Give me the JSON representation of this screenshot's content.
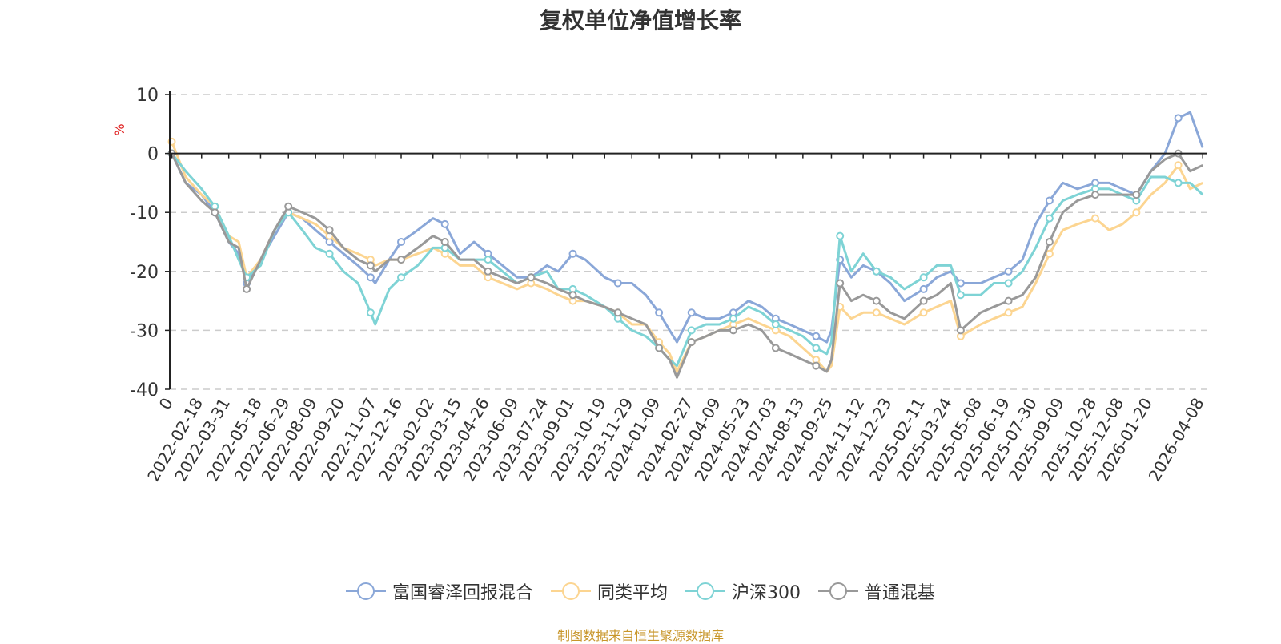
{
  "colors": {
    "series": [
      "#8aa7d8",
      "#fcd591",
      "#7ed3d5",
      "#999999"
    ],
    "grid": "#cccccc",
    "axis": "#222222",
    "unit": "#e02020",
    "footer": "#c8962a",
    "title": "#333333"
  },
  "chart_data": {
    "type": "line",
    "title": "复权单位净值增长率",
    "ylabel": "%",
    "xlabel": "",
    "ylim": [
      -40,
      10
    ],
    "yticks": [
      10,
      0,
      -10,
      -20,
      -30,
      -40
    ],
    "grid": true,
    "legend_position": "bottom-center",
    "x_domain": [
      "2022-01-01",
      "2026-04-15"
    ],
    "xtick_labels": [
      "0",
      "2022-02-18",
      "2022-03-31",
      "2022-05-18",
      "2022-06-29",
      "2022-08-09",
      "2022-09-20",
      "2022-11-07",
      "2022-12-16",
      "2023-02-02",
      "2023-03-15",
      "2023-04-26",
      "2023-06-09",
      "2023-07-24",
      "2023-09-01",
      "2023-10-19",
      "2023-11-29",
      "2024-01-09",
      "2024-02-27",
      "2024-04-09",
      "2024-05-23",
      "2024-07-03",
      "2024-08-13",
      "2024-09-25",
      "2024-11-12",
      "2024-12-23",
      "2025-02-11",
      "2025-03-24",
      "2025-05-08",
      "2025-06-19",
      "2025-07-30",
      "2025-09-09",
      "2025-10-28",
      "2025-12-08",
      "2026-01-20",
      "2026-04-08"
    ],
    "xtick_dates": [
      "2022-01-04",
      "2022-02-18",
      "2022-03-31",
      "2022-05-18",
      "2022-06-29",
      "2022-08-09",
      "2022-09-20",
      "2022-11-07",
      "2022-12-16",
      "2023-02-02",
      "2023-03-15",
      "2023-04-26",
      "2023-06-09",
      "2023-07-24",
      "2023-09-01",
      "2023-10-19",
      "2023-11-29",
      "2024-01-09",
      "2024-02-27",
      "2024-04-09",
      "2024-05-23",
      "2024-07-03",
      "2024-08-13",
      "2024-09-25",
      "2024-11-12",
      "2024-12-23",
      "2025-02-11",
      "2025-03-24",
      "2025-05-08",
      "2025-06-19",
      "2025-07-30",
      "2025-09-09",
      "2025-10-28",
      "2025-12-08",
      "2026-01-20",
      "2026-04-08"
    ],
    "series": [
      {
        "name": "富国睿泽回报混合",
        "x": [
          "2022-01-04",
          "2022-01-25",
          "2022-02-18",
          "2022-03-10",
          "2022-03-31",
          "2022-04-15",
          "2022-04-27",
          "2022-05-18",
          "2022-06-08",
          "2022-06-29",
          "2022-07-20",
          "2022-08-09",
          "2022-08-30",
          "2022-09-20",
          "2022-10-12",
          "2022-10-31",
          "2022-11-07",
          "2022-11-28",
          "2022-12-16",
          "2023-01-10",
          "2023-02-02",
          "2023-02-20",
          "2023-03-15",
          "2023-04-05",
          "2023-04-26",
          "2023-05-18",
          "2023-06-09",
          "2023-06-30",
          "2023-07-24",
          "2023-08-10",
          "2023-09-01",
          "2023-09-20",
          "2023-10-19",
          "2023-11-08",
          "2023-11-29",
          "2023-12-20",
          "2024-01-09",
          "2024-01-25",
          "2024-02-05",
          "2024-02-27",
          "2024-03-20",
          "2024-04-09",
          "2024-04-30",
          "2024-05-23",
          "2024-06-12",
          "2024-07-03",
          "2024-07-24",
          "2024-08-13",
          "2024-09-02",
          "2024-09-18",
          "2024-09-25",
          "2024-10-08",
          "2024-10-25",
          "2024-11-12",
          "2024-12-02",
          "2024-12-23",
          "2025-01-13",
          "2025-02-11",
          "2025-03-03",
          "2025-03-24",
          "2025-04-08",
          "2025-05-08",
          "2025-05-28",
          "2025-06-19",
          "2025-07-10",
          "2025-07-30",
          "2025-08-20",
          "2025-09-09",
          "2025-10-01",
          "2025-10-28",
          "2025-11-18",
          "2025-12-08",
          "2025-12-29",
          "2026-01-20",
          "2026-02-10",
          "2026-03-02",
          "2026-03-20",
          "2026-04-08"
        ],
        "values": [
          0,
          -5,
          -7,
          -10,
          -15,
          -17,
          -22,
          -18,
          -14,
          -10,
          -11,
          -13,
          -15,
          -17,
          -19,
          -21,
          -22,
          -18,
          -15,
          -13,
          -11,
          -12,
          -17,
          -15,
          -17,
          -19,
          -21,
          -21,
          -19,
          -20,
          -17,
          -18,
          -21,
          -22,
          -22,
          -24,
          -27,
          -30,
          -32,
          -27,
          -28,
          -28,
          -27,
          -25,
          -26,
          -28,
          -29,
          -30,
          -31,
          -32,
          -30,
          -18,
          -21,
          -19,
          -20,
          -22,
          -25,
          -23,
          -21,
          -20,
          -22,
          -22,
          -21,
          -20,
          -18,
          -12,
          -8,
          -5,
          -6,
          -5,
          -5,
          -6,
          -7,
          -3,
          0,
          6,
          7,
          1
        ]
      },
      {
        "name": "同类平均",
        "x": [
          "2022-01-04",
          "2022-01-25",
          "2022-02-18",
          "2022-03-10",
          "2022-03-31",
          "2022-04-15",
          "2022-04-27",
          "2022-05-18",
          "2022-06-08",
          "2022-06-29",
          "2022-07-20",
          "2022-08-09",
          "2022-08-30",
          "2022-09-20",
          "2022-10-12",
          "2022-10-31",
          "2022-11-07",
          "2022-11-28",
          "2022-12-16",
          "2023-01-10",
          "2023-02-02",
          "2023-02-20",
          "2023-03-15",
          "2023-04-05",
          "2023-04-26",
          "2023-05-18",
          "2023-06-09",
          "2023-06-30",
          "2023-07-24",
          "2023-08-10",
          "2023-09-01",
          "2023-09-20",
          "2023-10-19",
          "2023-11-08",
          "2023-11-29",
          "2023-12-20",
          "2024-01-09",
          "2024-01-25",
          "2024-02-05",
          "2024-02-27",
          "2024-03-20",
          "2024-04-09",
          "2024-04-30",
          "2024-05-23",
          "2024-06-12",
          "2024-07-03",
          "2024-07-24",
          "2024-08-13",
          "2024-09-02",
          "2024-09-18",
          "2024-09-25",
          "2024-10-08",
          "2024-10-25",
          "2024-11-12",
          "2024-12-02",
          "2024-12-23",
          "2025-01-13",
          "2025-02-11",
          "2025-03-03",
          "2025-03-24",
          "2025-04-08",
          "2025-05-08",
          "2025-05-28",
          "2025-06-19",
          "2025-07-10",
          "2025-07-30",
          "2025-08-20",
          "2025-09-09",
          "2025-10-01",
          "2025-10-28",
          "2025-11-18",
          "2025-12-08",
          "2025-12-29",
          "2026-01-20",
          "2026-02-10",
          "2026-03-02",
          "2026-03-20",
          "2026-04-08"
        ],
        "values": [
          2,
          -4,
          -7,
          -9,
          -14,
          -15,
          -21,
          -18,
          -13,
          -10,
          -11,
          -12,
          -14,
          -16,
          -17,
          -18,
          -19,
          -18,
          -18,
          -17,
          -16,
          -17,
          -19,
          -19,
          -21,
          -22,
          -23,
          -22,
          -23,
          -24,
          -25,
          -25,
          -26,
          -27,
          -29,
          -29,
          -32,
          -34,
          -37,
          -32,
          -31,
          -30,
          -29,
          -28,
          -29,
          -30,
          -31,
          -33,
          -35,
          -37,
          -36,
          -26,
          -28,
          -27,
          -27,
          -28,
          -29,
          -27,
          -26,
          -25,
          -31,
          -29,
          -28,
          -27,
          -26,
          -22,
          -17,
          -13,
          -12,
          -11,
          -13,
          -12,
          -10,
          -7,
          -5,
          -2,
          -6,
          -5
        ]
      },
      {
        "name": "沪深300",
        "x": [
          "2022-01-04",
          "2022-01-25",
          "2022-02-18",
          "2022-03-10",
          "2022-03-31",
          "2022-04-15",
          "2022-04-27",
          "2022-05-18",
          "2022-06-08",
          "2022-06-29",
          "2022-07-20",
          "2022-08-09",
          "2022-08-30",
          "2022-09-20",
          "2022-10-12",
          "2022-10-31",
          "2022-11-07",
          "2022-11-28",
          "2022-12-16",
          "2023-01-10",
          "2023-02-02",
          "2023-02-20",
          "2023-03-15",
          "2023-04-05",
          "2023-04-26",
          "2023-05-18",
          "2023-06-09",
          "2023-06-30",
          "2023-07-24",
          "2023-08-10",
          "2023-09-01",
          "2023-09-20",
          "2023-10-19",
          "2023-11-08",
          "2023-11-29",
          "2023-12-20",
          "2024-01-09",
          "2024-01-25",
          "2024-02-05",
          "2024-02-27",
          "2024-03-20",
          "2024-04-09",
          "2024-04-30",
          "2024-05-23",
          "2024-06-12",
          "2024-07-03",
          "2024-07-24",
          "2024-08-13",
          "2024-09-02",
          "2024-09-18",
          "2024-09-25",
          "2024-10-08",
          "2024-10-25",
          "2024-11-12",
          "2024-12-02",
          "2024-12-23",
          "2025-01-13",
          "2025-02-11",
          "2025-03-03",
          "2025-03-24",
          "2025-04-08",
          "2025-05-08",
          "2025-05-28",
          "2025-06-19",
          "2025-07-10",
          "2025-07-30",
          "2025-08-20",
          "2025-09-09",
          "2025-10-01",
          "2025-10-28",
          "2025-11-18",
          "2025-12-08",
          "2025-12-29",
          "2026-01-20",
          "2026-02-10",
          "2026-03-02",
          "2026-03-20",
          "2026-04-08"
        ],
        "values": [
          0,
          -3,
          -6,
          -9,
          -14,
          -18,
          -21,
          -19,
          -13,
          -10,
          -13,
          -16,
          -17,
          -20,
          -22,
          -27,
          -29,
          -23,
          -21,
          -19,
          -16,
          -16,
          -18,
          -18,
          -18,
          -20,
          -22,
          -21,
          -20,
          -23,
          -23,
          -24,
          -26,
          -28,
          -30,
          -31,
          -33,
          -35,
          -36,
          -30,
          -29,
          -29,
          -28,
          -26,
          -27,
          -29,
          -30,
          -31,
          -33,
          -34,
          -32,
          -14,
          -20,
          -17,
          -20,
          -21,
          -23,
          -21,
          -19,
          -19,
          -24,
          -24,
          -22,
          -22,
          -20,
          -16,
          -11,
          -8,
          -7,
          -6,
          -6,
          -7,
          -8,
          -4,
          -4,
          -5,
          -5,
          -7
        ]
      },
      {
        "name": "普通混基",
        "x": [
          "2022-01-04",
          "2022-01-25",
          "2022-02-18",
          "2022-03-10",
          "2022-03-31",
          "2022-04-15",
          "2022-04-27",
          "2022-05-18",
          "2022-06-08",
          "2022-06-29",
          "2022-07-20",
          "2022-08-09",
          "2022-08-30",
          "2022-09-20",
          "2022-10-12",
          "2022-10-31",
          "2022-11-07",
          "2022-11-28",
          "2022-12-16",
          "2023-01-10",
          "2023-02-02",
          "2023-02-20",
          "2023-03-15",
          "2023-04-05",
          "2023-04-26",
          "2023-05-18",
          "2023-06-09",
          "2023-06-30",
          "2023-07-24",
          "2023-08-10",
          "2023-09-01",
          "2023-09-20",
          "2023-10-19",
          "2023-11-08",
          "2023-11-29",
          "2023-12-20",
          "2024-01-09",
          "2024-01-25",
          "2024-02-05",
          "2024-02-27",
          "2024-03-20",
          "2024-04-09",
          "2024-04-30",
          "2024-05-23",
          "2024-06-12",
          "2024-07-03",
          "2024-07-24",
          "2024-08-13",
          "2024-09-02",
          "2024-09-18",
          "2024-09-25",
          "2024-10-08",
          "2024-10-25",
          "2024-11-12",
          "2024-12-02",
          "2024-12-23",
          "2025-01-13",
          "2025-02-11",
          "2025-03-03",
          "2025-03-24",
          "2025-04-08",
          "2025-05-08",
          "2025-05-28",
          "2025-06-19",
          "2025-07-10",
          "2025-07-30",
          "2025-08-20",
          "2025-09-09",
          "2025-10-01",
          "2025-10-28",
          "2025-11-18",
          "2025-12-08",
          "2025-12-29",
          "2026-01-20",
          "2026-02-10",
          "2026-03-02",
          "2026-03-20",
          "2026-04-08"
        ],
        "values": [
          0,
          -5,
          -8,
          -10,
          -15,
          -16,
          -23,
          -18,
          -13,
          -9,
          -10,
          -11,
          -13,
          -16,
          -18,
          -19,
          -20,
          -18,
          -18,
          -16,
          -14,
          -15,
          -18,
          -18,
          -20,
          -21,
          -22,
          -21,
          -22,
          -23,
          -24,
          -25,
          -26,
          -27,
          -28,
          -29,
          -33,
          -35,
          -38,
          -32,
          -31,
          -30,
          -30,
          -29,
          -30,
          -33,
          -34,
          -35,
          -36,
          -37,
          -35,
          -22,
          -25,
          -24,
          -25,
          -27,
          -28,
          -25,
          -24,
          -22,
          -30,
          -27,
          -26,
          -25,
          -24,
          -21,
          -15,
          -10,
          -8,
          -7,
          -7,
          -7,
          -7,
          -3,
          -1,
          0,
          -3,
          -2
        ]
      }
    ]
  },
  "legend": {
    "items": [
      "富国睿泽回报混合",
      "同类平均",
      "沪深300",
      "普通混基"
    ]
  },
  "footer": {
    "source": "制图数据来自恒生聚源数据库"
  }
}
